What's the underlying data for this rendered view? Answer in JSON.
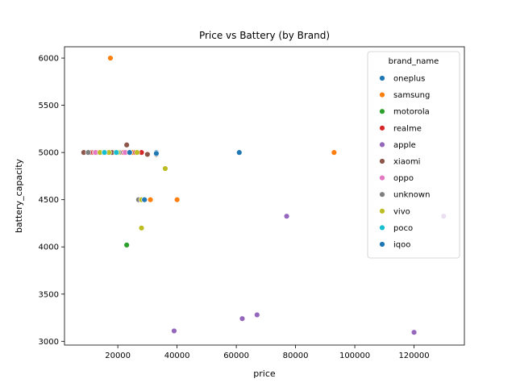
{
  "chart_data": {
    "type": "scatter",
    "title": "Price vs Battery (by Brand)",
    "xlabel": "price",
    "ylabel": "battery_capacity",
    "xlim": [
      2000,
      137000
    ],
    "ylim": [
      2960,
      6120
    ],
    "xticks": [
      20000,
      40000,
      60000,
      80000,
      100000,
      120000
    ],
    "yticks": [
      3000,
      3500,
      4000,
      4500,
      5000,
      5500,
      6000
    ],
    "grid": false,
    "legend": {
      "title": "brand_name",
      "placement": "top-right"
    },
    "series": [
      {
        "name": "oneplus",
        "color": "#1f77b4",
        "points": [
          [
            61000,
            5000
          ],
          [
            33000,
            5000
          ],
          [
            27000,
            4500
          ]
        ]
      },
      {
        "name": "samsung",
        "color": "#ff7f0e",
        "points": [
          [
            17500,
            6000
          ],
          [
            93000,
            5000
          ],
          [
            40000,
            4500
          ],
          [
            31000,
            4500
          ],
          [
            12000,
            5000
          ],
          [
            18500,
            5000
          ],
          [
            21500,
            5000
          ],
          [
            23500,
            5000
          ],
          [
            25000,
            5000
          ],
          [
            15000,
            5000
          ],
          [
            20000,
            5000
          ],
          [
            22000,
            5000
          ]
        ]
      },
      {
        "name": "motorola",
        "color": "#2ca02c",
        "points": [
          [
            23000,
            4020
          ],
          [
            11500,
            5000
          ],
          [
            15000,
            5000
          ],
          [
            19000,
            5000
          ],
          [
            16500,
            5000
          ]
        ]
      },
      {
        "name": "realme",
        "color": "#d62728",
        "points": [
          [
            11000,
            5000
          ],
          [
            13000,
            5000
          ],
          [
            26000,
            5000
          ],
          [
            28000,
            5000
          ],
          [
            22000,
            5000
          ],
          [
            10500,
            5000
          ]
        ]
      },
      {
        "name": "apple",
        "color": "#9467bd",
        "points": [
          [
            77000,
            4325
          ],
          [
            130000,
            4325
          ],
          [
            39000,
            3110
          ],
          [
            62000,
            3240
          ],
          [
            67000,
            3280
          ],
          [
            120000,
            3095
          ]
        ]
      },
      {
        "name": "xiaomi",
        "color": "#8c564b",
        "points": [
          [
            8500,
            5000
          ],
          [
            23000,
            5080
          ],
          [
            30000,
            4980
          ],
          [
            33000,
            4980
          ],
          [
            14000,
            5000
          ],
          [
            18000,
            5000
          ]
        ]
      },
      {
        "name": "oppo",
        "color": "#e377c2",
        "points": [
          [
            10000,
            5000
          ],
          [
            12500,
            5000
          ],
          [
            16000,
            5000
          ],
          [
            22500,
            5000
          ],
          [
            24000,
            5000
          ]
        ]
      },
      {
        "name": "unknown",
        "color": "#7f7f7f",
        "points": [
          [
            27000,
            4500
          ],
          [
            10000,
            5000
          ],
          [
            20500,
            5000
          ],
          [
            33000,
            4990
          ]
        ]
      },
      {
        "name": "vivo",
        "color": "#bcbd22",
        "points": [
          [
            36000,
            4830
          ],
          [
            28000,
            4200
          ],
          [
            28000,
            4500
          ],
          [
            17000,
            5000
          ],
          [
            20000,
            5000
          ],
          [
            14000,
            5000
          ],
          [
            26500,
            5000
          ]
        ]
      },
      {
        "name": "poco",
        "color": "#17becf",
        "points": [
          [
            15500,
            5000
          ],
          [
            19500,
            5000
          ],
          [
            29000,
            4500
          ]
        ]
      },
      {
        "name": "iqoo",
        "color": "#1f77b4",
        "points": [
          [
            29000,
            4500
          ],
          [
            33000,
            4990
          ],
          [
            24000,
            5000
          ]
        ]
      }
    ]
  }
}
